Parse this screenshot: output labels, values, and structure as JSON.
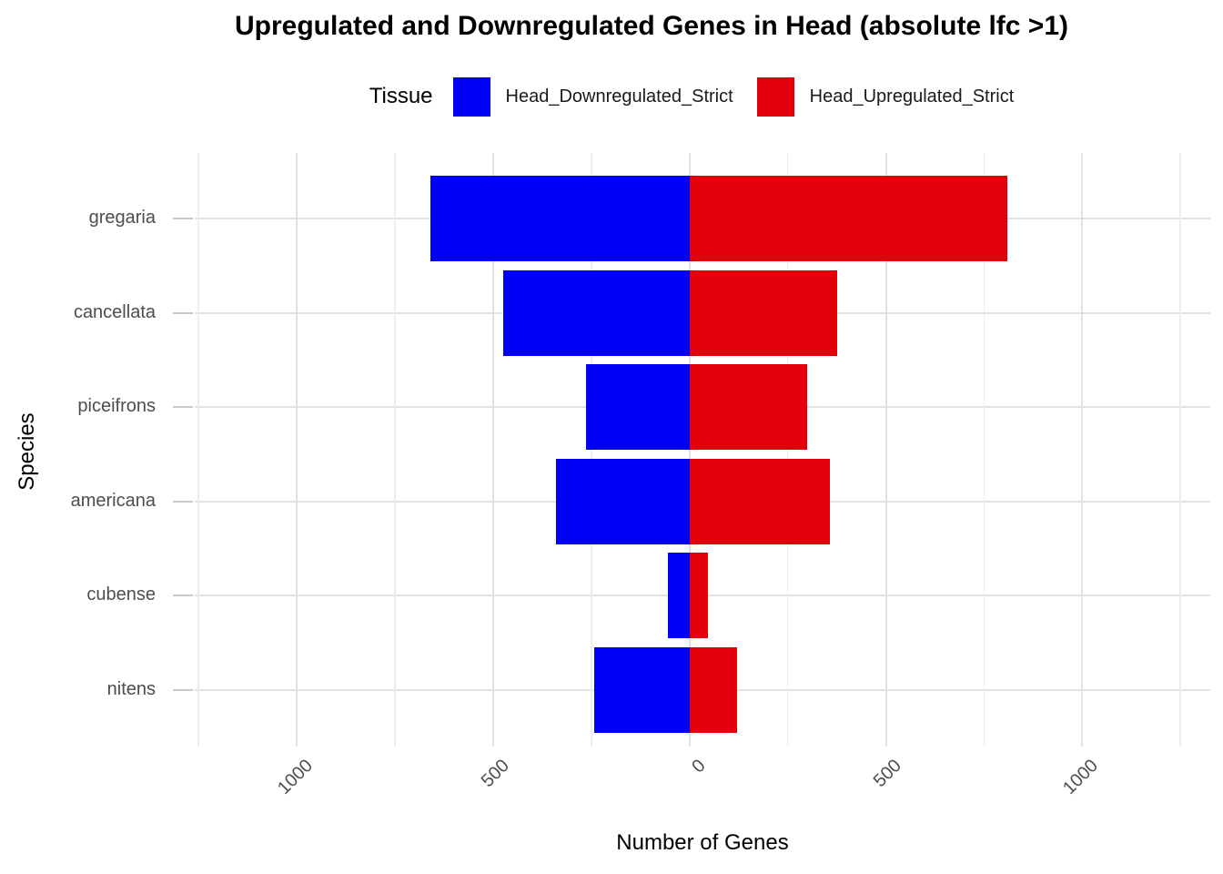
{
  "title": "Upregulated and Downregulated Genes in Head (absolute lfc >1)",
  "legend": {
    "title": "Tissue",
    "items": [
      {
        "label": "Head_Downregulated_Strict",
        "color": "#0000f5"
      },
      {
        "label": "Head_Upregulated_Strict",
        "color": "#e2000b"
      }
    ]
  },
  "chart_data": {
    "type": "bar",
    "variant": "horizontal-diverging",
    "title": "Upregulated and Downregulated Genes in Head (absolute lfc >1)",
    "xlabel": "Number of Genes",
    "ylabel": "Species",
    "legend_title": "Tissue",
    "legend_position": "top",
    "grid": true,
    "categories": [
      "gregaria",
      "cancellata",
      "piceifrons",
      "americana",
      "cubense",
      "nitens"
    ],
    "series": [
      {
        "name": "Head_Downregulated_Strict",
        "side": "left",
        "color": "#0000f5",
        "values": [
          660,
          474,
          263,
          341,
          54,
          242
        ]
      },
      {
        "name": "Head_Upregulated_Strict",
        "side": "right",
        "color": "#e2000b",
        "values": [
          810,
          375,
          300,
          357,
          48,
          121
        ]
      }
    ],
    "xlim": [
      -1260,
      1326
    ],
    "x_major_ticks": [
      -1000,
      -500,
      0,
      500,
      1000
    ],
    "x_tick_labels": [
      "1000",
      "500",
      "0",
      "500",
      "1000"
    ],
    "x_minor_ticks": [
      -1250,
      -750,
      -250,
      250,
      750,
      1250
    ],
    "grid_step": 250,
    "colors": {
      "grid_major": "#e2e2e2",
      "grid_minor": "#ededed",
      "axis_text": "#4d4d4d",
      "background": "#ffffff"
    }
  }
}
